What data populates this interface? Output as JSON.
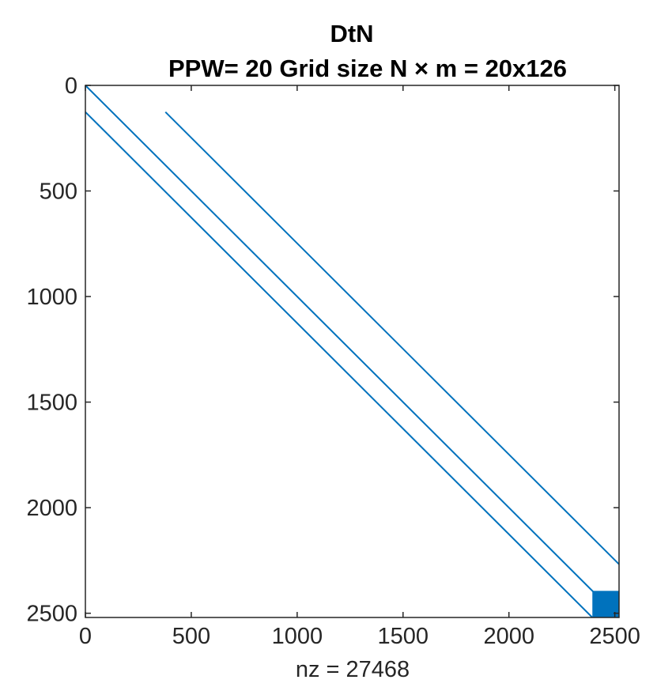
{
  "chart_data": {
    "type": "spy",
    "title": "DtN",
    "subtitle": "PPW= 20    Grid size N × m =  20x126",
    "xlabel": "nz = 27468",
    "ylabel": "",
    "xlim": [
      0,
      2520
    ],
    "ylim": [
      0,
      2520
    ],
    "y_axis_reversed": true,
    "xticks": [
      0,
      500,
      1000,
      1500,
      2000,
      2500
    ],
    "yticks": [
      0,
      500,
      1000,
      1500,
      2000,
      2500
    ],
    "grid": false,
    "color": "#0072BD",
    "diagonals": [
      {
        "offset": 0,
        "row_start": 0,
        "row_end": 2520
      },
      {
        "offset": -126,
        "row_start": 126,
        "row_end": 2520
      },
      {
        "offset": 252,
        "row_start": 126,
        "row_end": 2268
      }
    ],
    "dense_block": {
      "row_start": 2394,
      "row_end": 2520,
      "col_start": 2394,
      "col_end": 2520
    }
  }
}
